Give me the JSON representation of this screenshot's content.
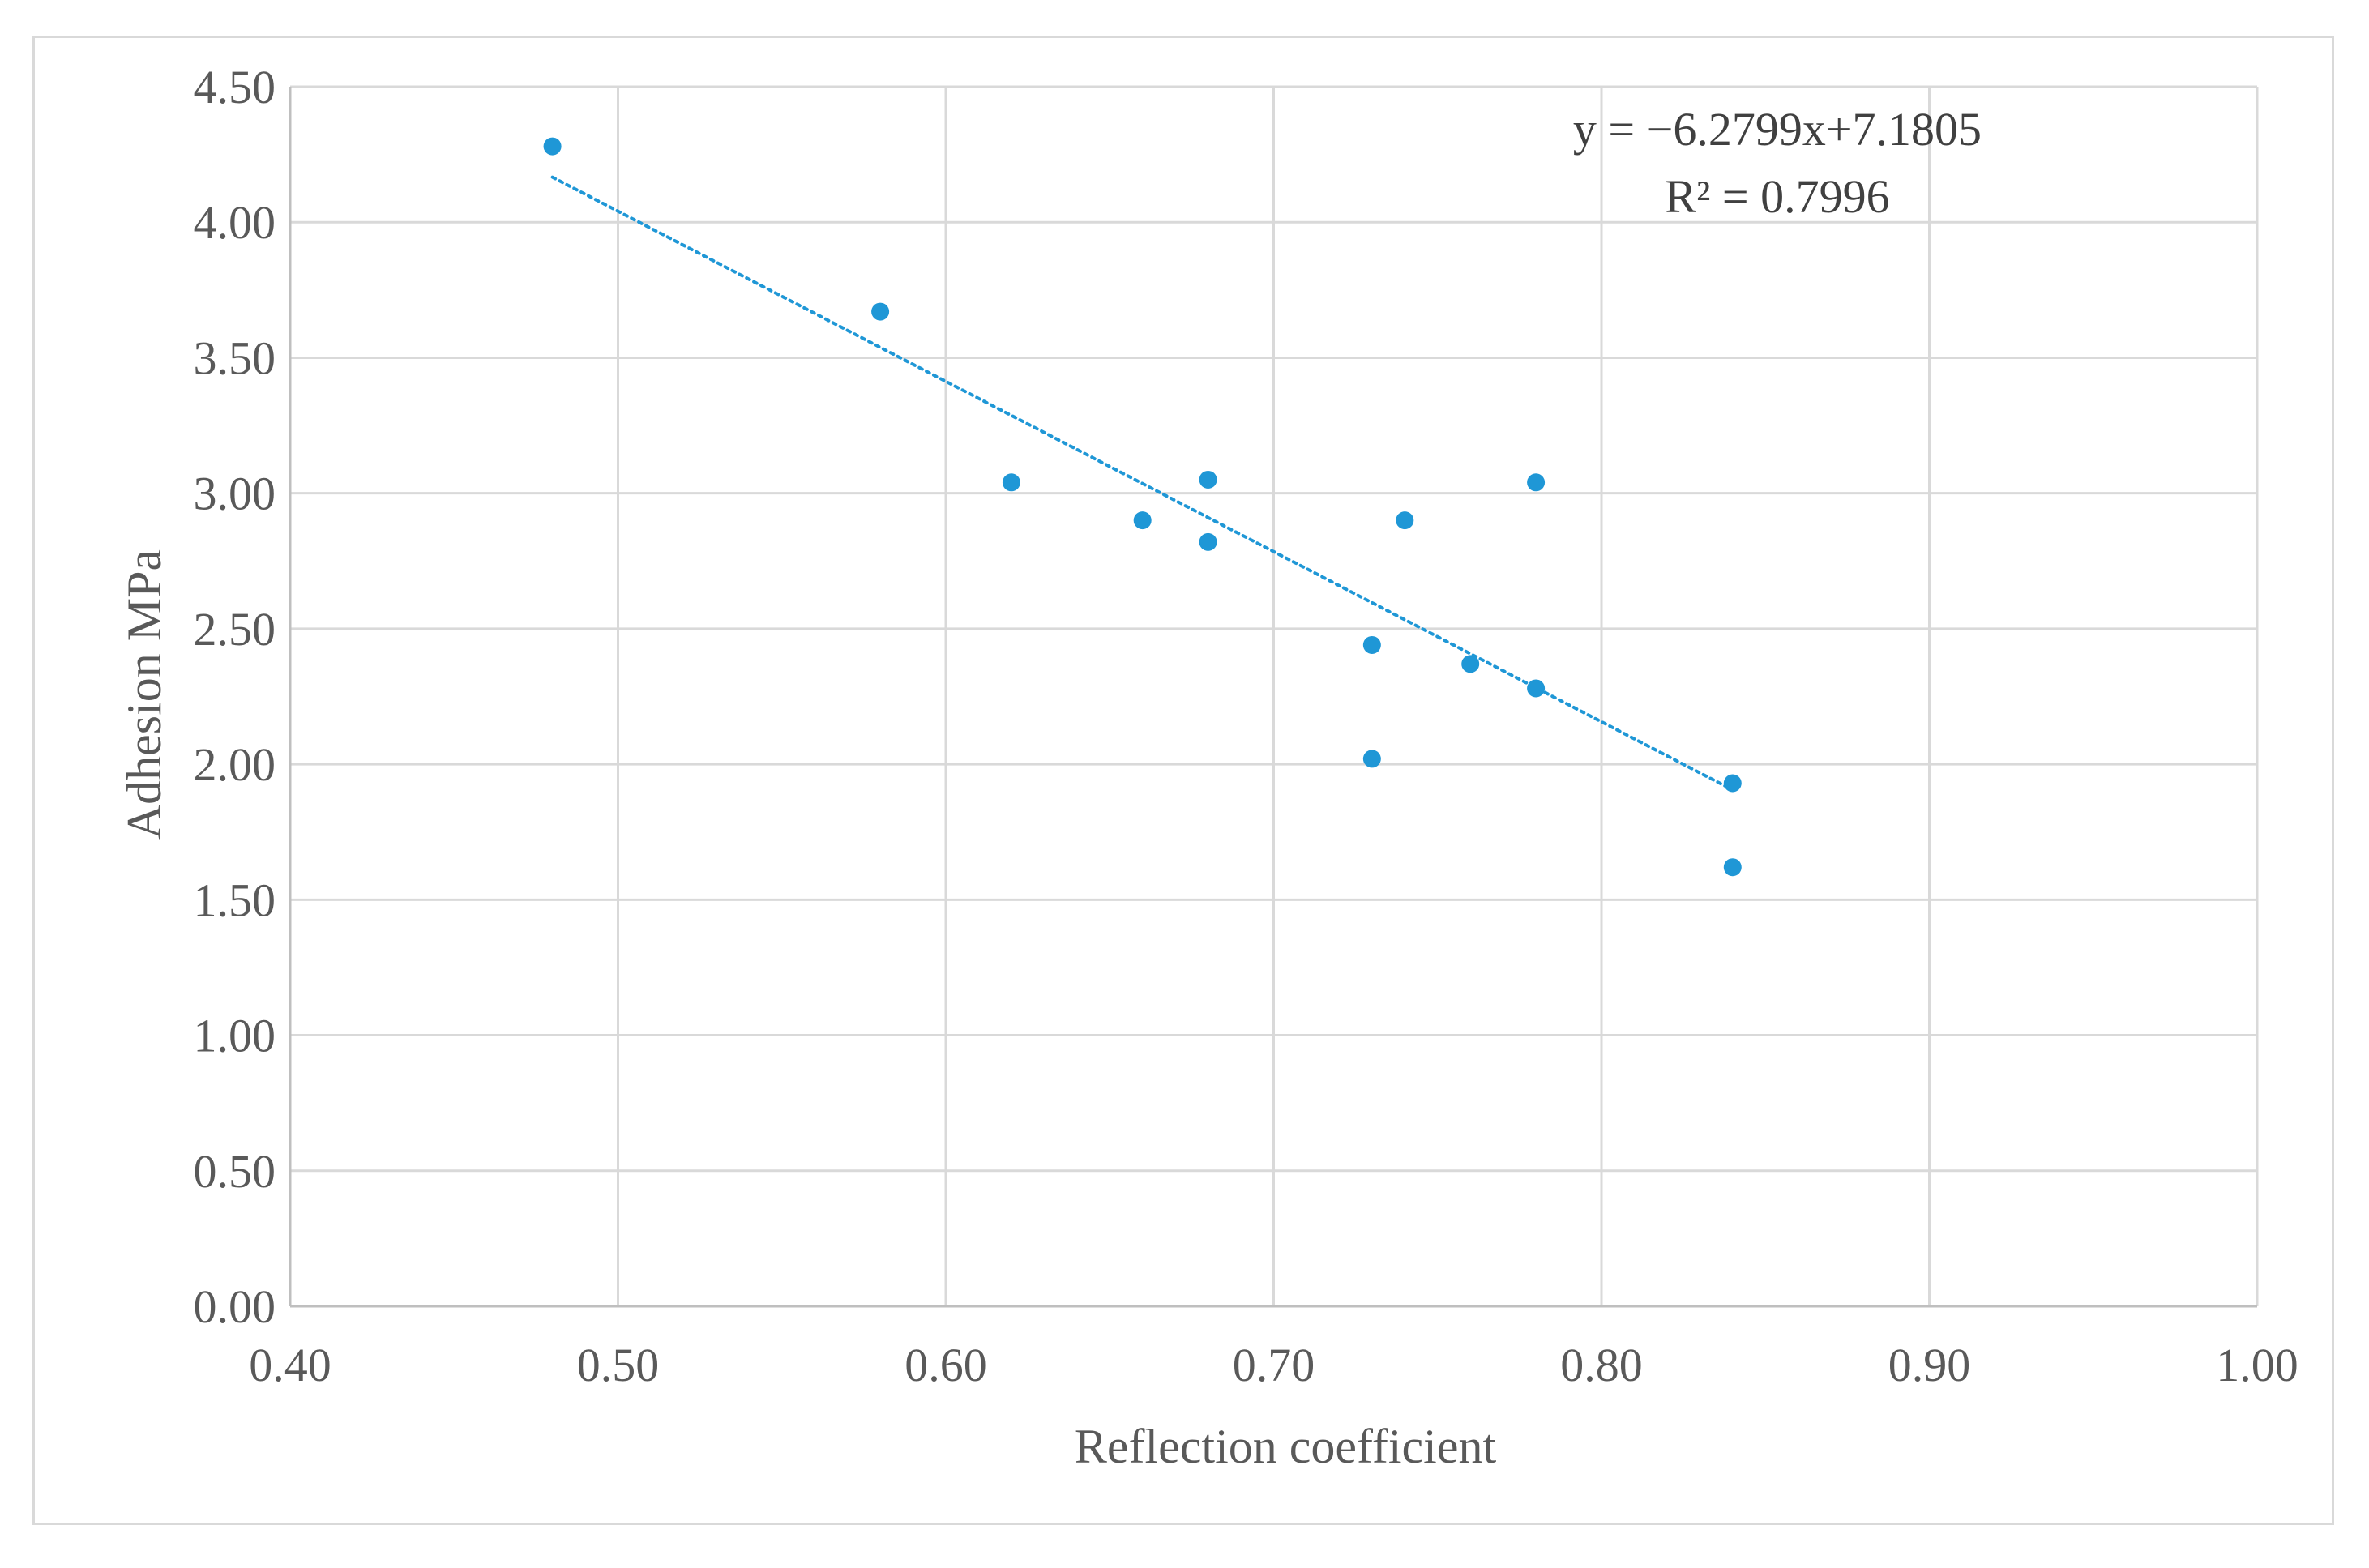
{
  "chart_data": {
    "type": "scatter",
    "title": "",
    "xlabel": "Reflection coefficient",
    "ylabel": "Adhesion MPa",
    "xlim": [
      0.4,
      1.0
    ],
    "ylim": [
      0.0,
      4.5
    ],
    "x_ticks": [
      "0.40",
      "0.50",
      "0.60",
      "0.70",
      "0.80",
      "0.90",
      "1.00"
    ],
    "y_ticks": [
      "0.00",
      "0.50",
      "1.00",
      "1.50",
      "2.00",
      "2.50",
      "3.00",
      "3.50",
      "4.00",
      "4.50"
    ],
    "grid": true,
    "series": [
      {
        "name": "Adhesion",
        "color": "#1f97d6",
        "points": [
          {
            "x": 0.48,
            "y": 4.28
          },
          {
            "x": 0.58,
            "y": 3.67
          },
          {
            "x": 0.62,
            "y": 3.04
          },
          {
            "x": 0.66,
            "y": 2.9
          },
          {
            "x": 0.68,
            "y": 3.05
          },
          {
            "x": 0.68,
            "y": 2.82
          },
          {
            "x": 0.73,
            "y": 2.44
          },
          {
            "x": 0.73,
            "y": 2.02
          },
          {
            "x": 0.74,
            "y": 2.9
          },
          {
            "x": 0.76,
            "y": 2.37
          },
          {
            "x": 0.78,
            "y": 3.04
          },
          {
            "x": 0.78,
            "y": 2.28
          },
          {
            "x": 0.84,
            "y": 1.93
          },
          {
            "x": 0.84,
            "y": 1.62
          }
        ]
      }
    ],
    "trendline": {
      "type": "linear",
      "style": "dotted",
      "color": "#1f97d6",
      "slope": -6.2799,
      "intercept": 7.1805,
      "x_range": [
        0.48,
        0.84
      ],
      "equation_label": "y = −6.2799x+7.1805",
      "r2_label": "R² = 0.7996"
    }
  }
}
